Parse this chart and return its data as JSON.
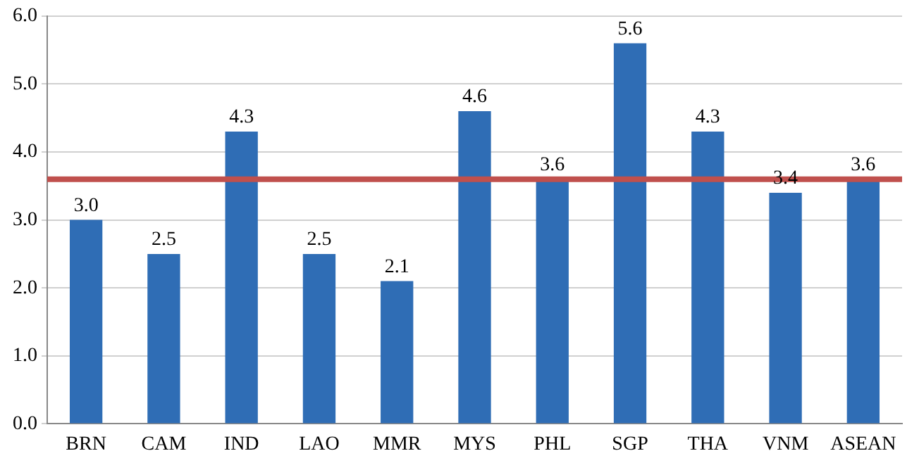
{
  "chart_data": {
    "type": "bar",
    "categories": [
      "BRN",
      "CAM",
      "IND",
      "LAO",
      "MMR",
      "MYS",
      "PHL",
      "SGP",
      "THA",
      "VNM",
      "ASEAN"
    ],
    "values": [
      3.0,
      2.5,
      4.3,
      2.5,
      2.1,
      4.6,
      3.6,
      5.6,
      4.3,
      3.4,
      3.6
    ],
    "color": "#2f6db5",
    "value_labels": [
      "3.0",
      "2.5",
      "4.3",
      "2.5",
      "2.1",
      "4.6",
      "3.6",
      "5.6",
      "4.3",
      "3.4",
      "3.6"
    ],
    "ylim": [
      0,
      6
    ],
    "yticks": [
      {
        "value": 0,
        "label": "0.0"
      },
      {
        "value": 1,
        "label": "1.0"
      },
      {
        "value": 2,
        "label": "2.0"
      },
      {
        "value": 3,
        "label": "3.0"
      },
      {
        "value": 4,
        "label": "4.0"
      },
      {
        "value": 5,
        "label": "5.0"
      },
      {
        "value": 6,
        "label": "6.0"
      }
    ],
    "grid": "y",
    "ref_lines": [
      {
        "axis": "y",
        "value": 3.6,
        "color": "#c0504d"
      }
    ]
  }
}
